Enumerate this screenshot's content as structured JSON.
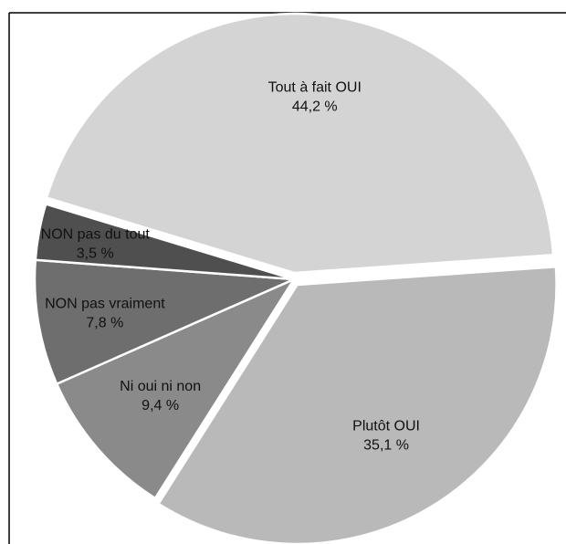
{
  "chart_data": {
    "type": "pie",
    "start_angle_deg": -4,
    "direction": "clockwise",
    "slices": [
      {
        "label": "Plutôt OUI",
        "value": 35.1,
        "value_text": "35,1 %",
        "color": "#b9b9b9",
        "exploded": true
      },
      {
        "label": "Ni oui ni non",
        "value": 9.4,
        "value_text": "9,4 %",
        "color": "#8a8a8a",
        "exploded": false
      },
      {
        "label": "NON pas vraiment",
        "value": 7.8,
        "value_text": "7,8 %",
        "color": "#6e6e6e",
        "exploded": false
      },
      {
        "label": "NON pas du tout",
        "value": 3.5,
        "value_text": "3,5 %",
        "color": "#4f4f4f",
        "exploded": false
      },
      {
        "label": "Tout à fait OUI",
        "value": 44.2,
        "value_text": "44,2 %",
        "color": "#d4d4d4",
        "exploded": true
      }
    ]
  }
}
